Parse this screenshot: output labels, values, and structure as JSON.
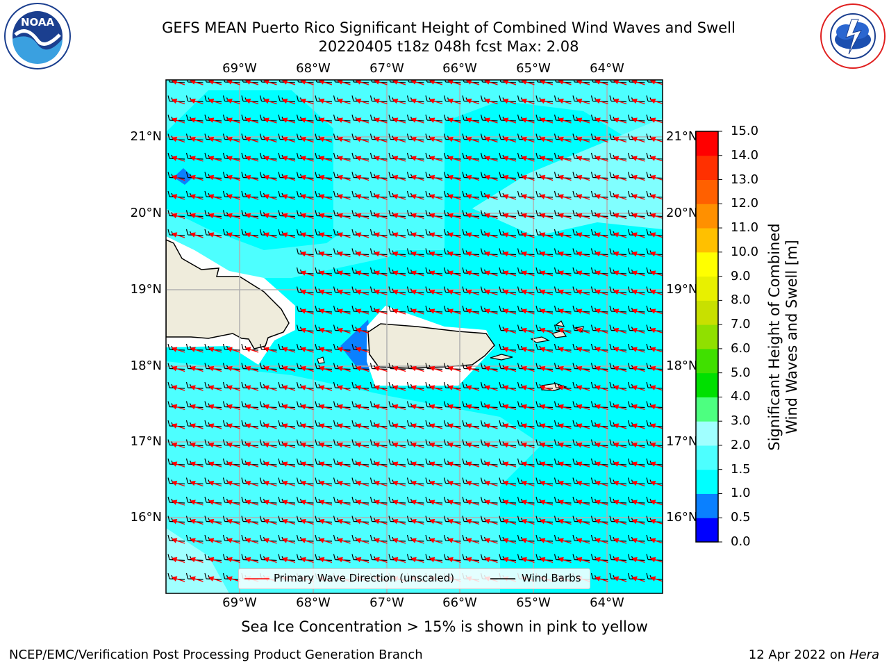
{
  "header": {
    "title_line1": "GEFS MEAN Puerto Rico Significant Height of Combined Wind Waves and Swell",
    "title_line2": "20220405 t18z 048h fcst   Max: 2.08"
  },
  "logos": {
    "noaa_text": "NOAA",
    "noaa_ring": "NATIONAL OCEANIC AND ATMOSPHERIC ADMINISTRATION · U.S. DEPARTMENT OF COMMERCE",
    "nws_ring": "NATIONAL WEATHER SERVICE"
  },
  "map": {
    "lon_ticks": [
      "69°W",
      "68°W",
      "67°W",
      "66°W",
      "65°W",
      "64°W"
    ],
    "lat_ticks": [
      "21°N",
      "20°N",
      "19°N",
      "18°N",
      "17°N",
      "16°N"
    ],
    "ocean_color": "#00ffff",
    "land_color": "#efecdc",
    "barb_color": "#000000",
    "arrow_color": "#ff0000"
  },
  "legend": {
    "wave_direction": "Primary Wave Direction (unscaled)",
    "wind_barbs": "Wind Barbs"
  },
  "colorbar": {
    "label_line1": "Significant Height of Combined",
    "label_line2": "Wind Waves and Swell [m]",
    "levels": [
      "0.0",
      "0.5",
      "1.0",
      "1.5",
      "2.0",
      "3.0",
      "4.0",
      "5.0",
      "6.0",
      "7.0",
      "8.0",
      "9.0",
      "10.0",
      "11.0",
      "12.0",
      "13.0",
      "14.0",
      "15.0"
    ],
    "colors": [
      "#0000ff",
      "#0a80ff",
      "#00ffff",
      "#4dffff",
      "#a0ffff",
      "#4dff80",
      "#00e000",
      "#40e000",
      "#90e000",
      "#c8e000",
      "#e8f000",
      "#ffff00",
      "#ffc000",
      "#ff9000",
      "#ff6000",
      "#ff3000",
      "#ff0000"
    ]
  },
  "caption": "Sea Ice Concentration > 15% is shown in pink to yellow",
  "footer": {
    "left": "NCEP/EMC/Verification Post Processing Product Generation Branch",
    "right_prefix": "12 Apr 2022 on ",
    "right_host": "Hera"
  }
}
